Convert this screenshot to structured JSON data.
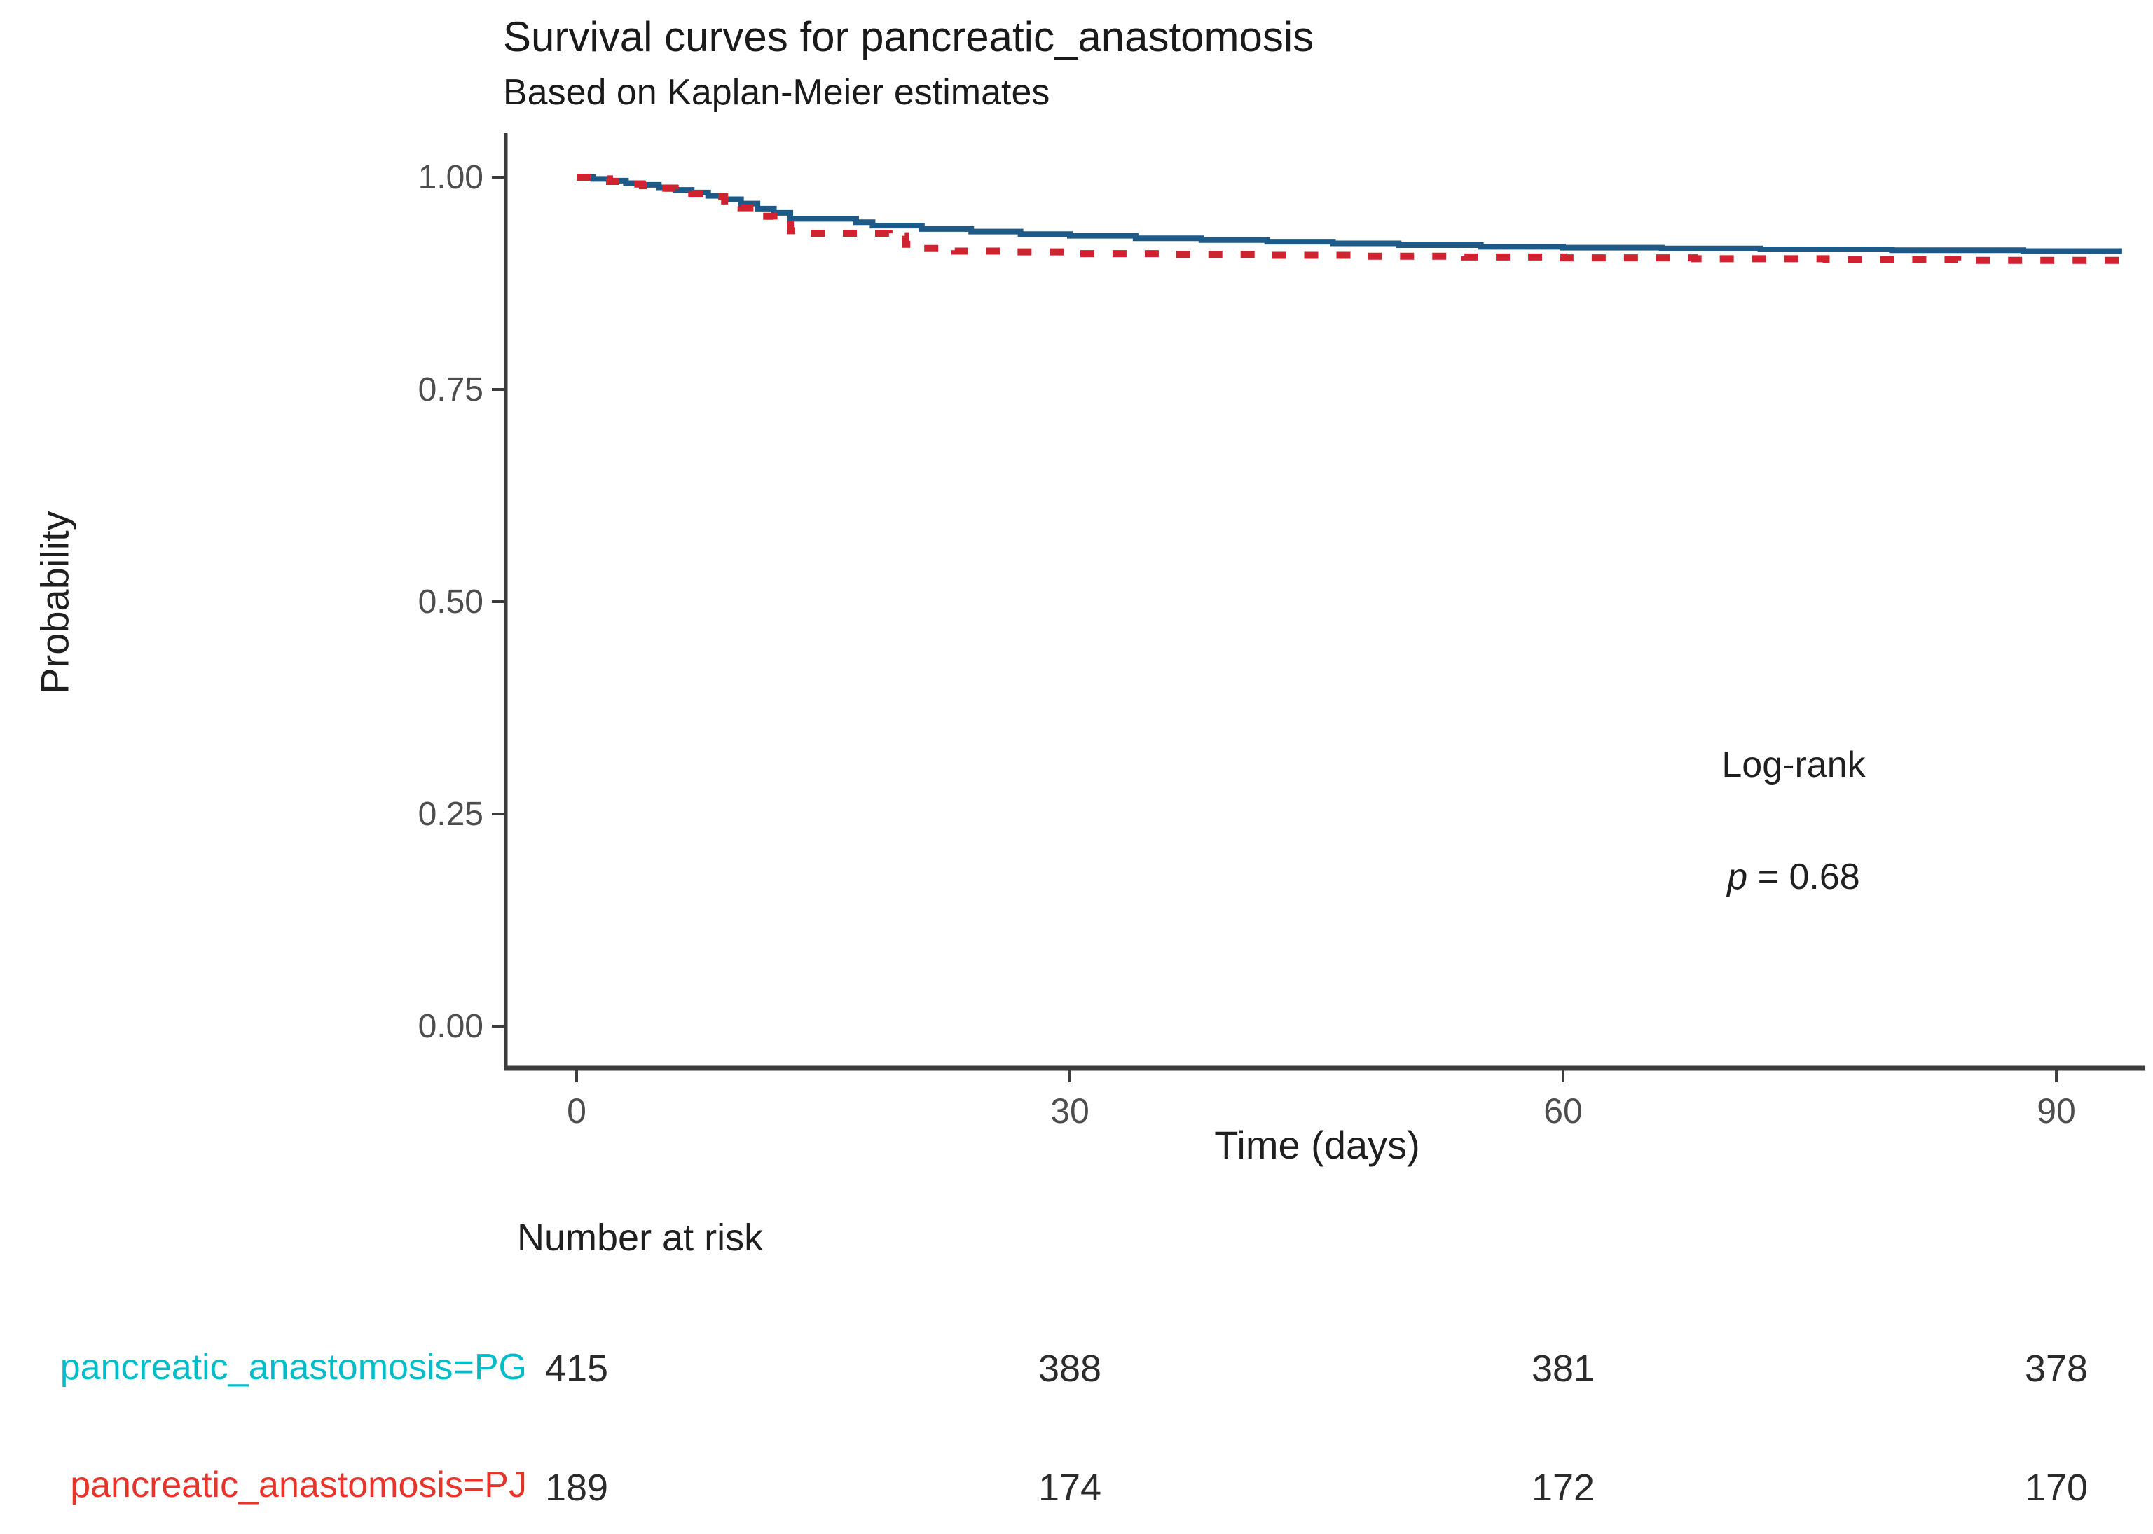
{
  "figure": {
    "title": "Survival curves for pancreatic_anastomosis",
    "subtitle": "Based on Kaplan-Meier estimates"
  },
  "axes": {
    "x_label": "Time (days)",
    "y_label": "Probability"
  },
  "annotation": {
    "test_name": "Log-rank",
    "p_symbol": "p",
    "p_rest": " = 0.68"
  },
  "risk_table": {
    "title": "Number at risk",
    "rows": [
      {
        "label": "pancreatic_anastomosis=PG",
        "color": "#00bcc9",
        "values": [
          "415",
          "388",
          "381",
          "378"
        ]
      },
      {
        "label": "pancreatic_anastomosis=PJ",
        "color": "#e8332a",
        "values": [
          "189",
          "174",
          "172",
          "170"
        ]
      }
    ]
  },
  "chart_data": {
    "type": "line",
    "subtype": "kaplan-meier-step",
    "title": "Survival curves for pancreatic_anastomosis",
    "xlabel": "Time (days)",
    "ylabel": "Probability",
    "xlim": [
      0,
      94
    ],
    "ylim": [
      0,
      1
    ],
    "x_ticks": [
      0,
      30,
      60,
      90
    ],
    "y_ticks": [
      1.0,
      0.75,
      0.5,
      0.25,
      0.0
    ],
    "grid": false,
    "legend_position": "none",
    "axis_color": "#3c3c3c",
    "tick_label_color": "#4d4d4d",
    "series": [
      {
        "name": "pancreatic_anastomosis=PG",
        "line_style": "solid",
        "color": "#1d5a87",
        "points": [
          [
            0,
            1.0
          ],
          [
            1,
            0.998
          ],
          [
            2,
            0.996
          ],
          [
            3,
            0.993
          ],
          [
            4,
            0.991
          ],
          [
            5,
            0.988
          ],
          [
            6,
            0.985
          ],
          [
            7,
            0.982
          ],
          [
            8,
            0.978
          ],
          [
            9,
            0.974
          ],
          [
            10,
            0.969
          ],
          [
            11,
            0.963
          ],
          [
            12,
            0.958
          ],
          [
            13,
            0.951
          ],
          [
            17,
            0.947
          ],
          [
            18,
            0.943
          ],
          [
            21,
            0.939
          ],
          [
            24,
            0.936
          ],
          [
            27,
            0.933
          ],
          [
            30,
            0.931
          ],
          [
            34,
            0.928
          ],
          [
            38,
            0.926
          ],
          [
            42,
            0.924
          ],
          [
            46,
            0.922
          ],
          [
            50,
            0.92
          ],
          [
            55,
            0.918
          ],
          [
            60,
            0.917
          ],
          [
            66,
            0.916
          ],
          [
            72,
            0.915
          ],
          [
            80,
            0.914
          ],
          [
            88,
            0.913
          ],
          [
            94,
            0.913
          ]
        ]
      },
      {
        "name": "pancreatic_anastomosis=PJ",
        "line_style": "dashed",
        "color": "#cf2430",
        "points": [
          [
            0,
            1.0
          ],
          [
            1,
            0.998
          ],
          [
            2,
            0.995
          ],
          [
            3,
            0.992
          ],
          [
            4,
            0.99
          ],
          [
            5,
            0.987
          ],
          [
            6,
            0.984
          ],
          [
            7,
            0.981
          ],
          [
            8,
            0.977
          ],
          [
            9,
            0.972
          ],
          [
            10,
            0.964
          ],
          [
            11,
            0.954
          ],
          [
            12,
            0.944
          ],
          [
            13,
            0.937
          ],
          [
            14,
            0.934
          ],
          [
            19,
            0.931
          ],
          [
            20,
            0.921
          ],
          [
            21,
            0.916
          ],
          [
            23,
            0.913
          ],
          [
            26,
            0.912
          ],
          [
            30,
            0.91
          ],
          [
            36,
            0.909
          ],
          [
            42,
            0.908
          ],
          [
            48,
            0.907
          ],
          [
            54,
            0.906
          ],
          [
            60,
            0.905
          ],
          [
            68,
            0.904
          ],
          [
            76,
            0.903
          ],
          [
            84,
            0.902
          ],
          [
            94,
            0.901
          ]
        ]
      }
    ]
  }
}
